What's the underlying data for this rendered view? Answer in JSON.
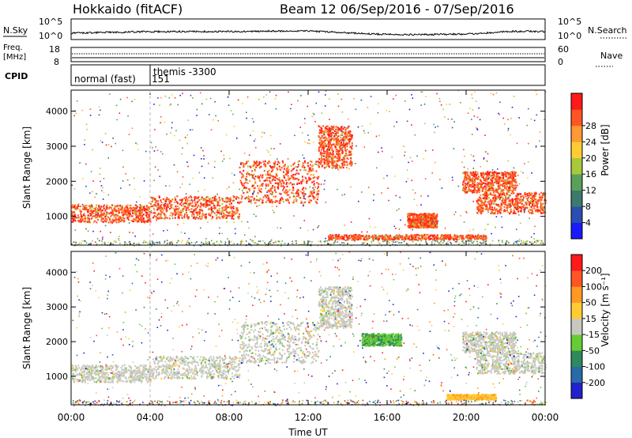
{
  "header": {
    "station": "Hokkaido (fitACF)",
    "beam_title": "Beam 12  06/Sep/2016 - 07/Sep/2016"
  },
  "top_panels": {
    "nsky": {
      "label": "N.Sky",
      "ytick_top": "10^5",
      "ytick_bottom": "10^0"
    },
    "nsearch": {
      "label": "N.Search",
      "ytick_top": "10^5",
      "ytick_bottom": "10^0"
    },
    "freq": {
      "label_line1": "Freq.",
      "label_line2": "[MHz]",
      "ytick_top": "18",
      "ytick_bottom": "8"
    },
    "nave": {
      "label": "Nave",
      "ytick_top": "60",
      "ytick_bottom": "0"
    },
    "cpid": {
      "label": "CPID",
      "modes": [
        "normal (fast)",
        "151",
        "themis -3300"
      ]
    }
  },
  "chart_data": [
    {
      "type": "heatmap",
      "name": "power",
      "ylabel": "Slant Range [km]",
      "xlabel": "",
      "yticks": [
        "1000",
        "2000",
        "3000",
        "4000"
      ],
      "ylim": [
        180,
        4600
      ],
      "xlim_hours": [
        0,
        24
      ],
      "colorbar_label": "Power [dB]",
      "colorbar_ticks": [
        "4",
        "8",
        "12",
        "16",
        "20",
        "24",
        "28"
      ],
      "colorbar_colors": [
        "#1a1aff",
        "#2a4fb0",
        "#3c7a6e",
        "#5aa05a",
        "#a8c83c",
        "#ffcc33",
        "#ff9933",
        "#ff5522",
        "#ff1a1a"
      ],
      "dominant_power_db": "20-30",
      "regions": [
        {
          "t0": 0.0,
          "t1": 4.0,
          "r0": 850,
          "r1": 1350
        },
        {
          "t0": 4.0,
          "t1": 8.5,
          "r0": 950,
          "r1": 1600
        },
        {
          "t0": 8.5,
          "t1": 12.5,
          "r0": 1400,
          "r1": 2600
        },
        {
          "t0": 12.5,
          "t1": 14.2,
          "r0": 2400,
          "r1": 3600
        },
        {
          "t0": 17.0,
          "t1": 18.5,
          "r0": 700,
          "r1": 1100
        },
        {
          "t0": 19.8,
          "t1": 22.5,
          "r0": 1700,
          "r1": 2300
        },
        {
          "t0": 20.5,
          "t1": 24.0,
          "r0": 1100,
          "r1": 1700
        },
        {
          "t0": 13.0,
          "t1": 21.0,
          "r0": 350,
          "r1": 500
        }
      ]
    },
    {
      "type": "heatmap",
      "name": "velocity",
      "ylabel": "Slant Range [km]",
      "xlabel": "Time UT",
      "yticks": [
        "1000",
        "2000",
        "3000",
        "4000"
      ],
      "ylim": [
        180,
        4600
      ],
      "xlim_hours": [
        0,
        24
      ],
      "xticks": [
        "00:00",
        "04:00",
        "08:00",
        "12:00",
        "16:00",
        "20:00",
        "00:00"
      ],
      "colorbar_label": "Velocity [m s⁻¹]",
      "colorbar_ticks": [
        "200",
        "100",
        "50",
        "15",
        "-15",
        "-50",
        "-100",
        "-200"
      ],
      "colorbar_colors": [
        "#2222cc",
        "#2a6aa8",
        "#2e8a5a",
        "#66cc33",
        "#c8c8c0",
        "#ffcc33",
        "#ff9922",
        "#ff5522",
        "#ff1a1a"
      ],
      "dominant_velocity": "ground scatter (gray)",
      "regions": [
        {
          "t0": 0.0,
          "t1": 4.0,
          "r0": 850,
          "r1": 1350
        },
        {
          "t0": 4.0,
          "t1": 8.5,
          "r0": 950,
          "r1": 1600
        },
        {
          "t0": 8.5,
          "t1": 12.5,
          "r0": 1400,
          "r1": 2600
        },
        {
          "t0": 12.5,
          "t1": 14.2,
          "r0": 2400,
          "r1": 3600
        },
        {
          "t0": 14.7,
          "t1": 16.7,
          "r0": 1900,
          "r1": 2250
        },
        {
          "t0": 19.8,
          "t1": 22.5,
          "r0": 1700,
          "r1": 2300
        },
        {
          "t0": 20.5,
          "t1": 24.0,
          "r0": 1100,
          "r1": 1700
        },
        {
          "t0": 19.0,
          "t1": 21.5,
          "r0": 350,
          "r1": 500
        }
      ]
    }
  ]
}
